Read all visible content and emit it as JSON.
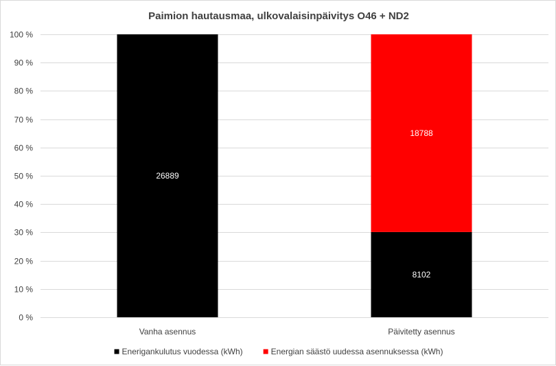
{
  "chart_data": {
    "type": "bar",
    "stacked": "percent",
    "title": "Paimion hautausmaa, ulkovalaisinpäivitys O46 + ND2",
    "categories": [
      "Vanha asennus",
      "Päivitetty asennus"
    ],
    "series": [
      {
        "name": "Enerigankulutus vuodessa (kWh)",
        "values": [
          26889,
          8102
        ],
        "color": "#000000"
      },
      {
        "name": "Energian säästö uudessa asennuksessa (kWh)",
        "values": [
          0,
          18788
        ],
        "color": "#ff0000"
      }
    ],
    "y_ticks": [
      "0 %",
      "10 %",
      "20 %",
      "30 %",
      "40 %",
      "50 %",
      "60 %",
      "70 %",
      "80 %",
      "90 %",
      "100 %"
    ],
    "ylim": [
      0,
      100
    ],
    "grid": true,
    "legend_position": "bottom"
  }
}
